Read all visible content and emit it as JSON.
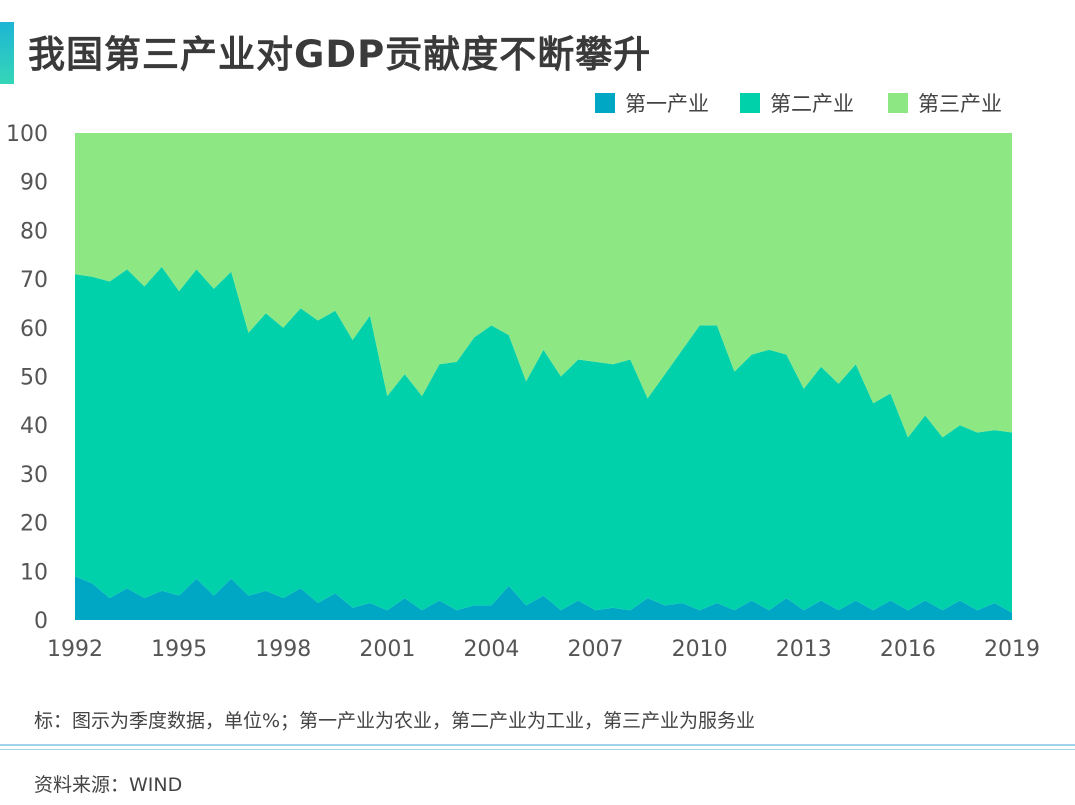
{
  "title": "我国第三产业对GDP贡献度不断攀升",
  "note": "标：图示为季度数据，单位%；第一产业为农业，第二产业为工业，第三产业为服务业",
  "source": "资料来源：WIND",
  "colors": {
    "primary": "#00a7c5",
    "secondary": "#00d1aa",
    "tertiary": "#8de883",
    "title_accent": "#1db5d4"
  },
  "chart_data": {
    "type": "area",
    "stacked": true,
    "title": "我国第三产业对GDP贡献度不断攀升",
    "xlabel": "",
    "ylabel": "",
    "ylim": [
      0,
      100
    ],
    "xlim": [
      1992,
      2019
    ],
    "yticks": [
      0,
      10,
      20,
      30,
      40,
      50,
      60,
      70,
      80,
      90,
      100
    ],
    "xticks": [
      "1992",
      "1995",
      "1998",
      "2001",
      "2004",
      "2007",
      "2010",
      "2013",
      "2016",
      "2019"
    ],
    "legend_position": "top-right",
    "series": [
      {
        "name": "第一产业",
        "color": "#00a7c5",
        "x": [
          1992,
          1992.5,
          1993,
          1993.5,
          1994,
          1994.5,
          1995,
          1995.5,
          1996,
          1996.5,
          1997,
          1997.5,
          1998,
          1998.5,
          1999,
          1999.5,
          2000,
          2000.5,
          2001,
          2001.5,
          2002,
          2002.5,
          2003,
          2003.5,
          2004,
          2004.5,
          2005,
          2005.5,
          2006,
          2006.5,
          2007,
          2007.5,
          2008,
          2008.5,
          2009,
          2009.5,
          2010,
          2010.5,
          2011,
          2011.5,
          2012,
          2012.5,
          2013,
          2013.5,
          2014,
          2014.5,
          2015,
          2015.5,
          2016,
          2016.5,
          2017,
          2017.5,
          2018,
          2018.5,
          2019
        ],
        "values": [
          9,
          7.5,
          4.5,
          6.5,
          4.5,
          6,
          5,
          8.5,
          5,
          8.5,
          5,
          6,
          4.5,
          6.5,
          3.5,
          5.5,
          2.5,
          3.5,
          2,
          4.5,
          2,
          4,
          2,
          3,
          3,
          7,
          3,
          5,
          2,
          4,
          2,
          2.5,
          2,
          4.5,
          3,
          3.5,
          2,
          3.5,
          2,
          4,
          2,
          4.5,
          2,
          4,
          2,
          4,
          2,
          4,
          2,
          4,
          2,
          4,
          2,
          3.5,
          1.5
        ]
      },
      {
        "name": "第二产业",
        "color": "#00d1aa",
        "x": [
          1992,
          1992.5,
          1993,
          1993.5,
          1994,
          1994.5,
          1995,
          1995.5,
          1996,
          1996.5,
          1997,
          1997.5,
          1998,
          1998.5,
          1999,
          1999.5,
          2000,
          2000.5,
          2001,
          2001.5,
          2002,
          2002.5,
          2003,
          2003.5,
          2004,
          2004.5,
          2005,
          2005.5,
          2006,
          2006.5,
          2007,
          2007.5,
          2008,
          2008.5,
          2009,
          2009.5,
          2010,
          2010.5,
          2011,
          2011.5,
          2012,
          2012.5,
          2013,
          2013.5,
          2014,
          2014.5,
          2015,
          2015.5,
          2016,
          2016.5,
          2017,
          2017.5,
          2018,
          2018.5,
          2019
        ],
        "values": [
          62,
          63,
          65,
          65.5,
          64,
          66.5,
          62.5,
          63.5,
          63,
          63,
          54,
          57,
          55.5,
          57.5,
          58,
          58,
          55,
          59,
          44,
          46,
          44,
          48.5,
          51,
          55,
          57.5,
          51.5,
          46,
          50.5,
          48,
          49.5,
          51,
          50,
          51.5,
          41,
          47.5,
          52,
          58.5,
          57,
          49,
          50.5,
          53.5,
          50,
          45.5,
          48,
          46.5,
          48.5,
          42.5,
          42.5,
          35.5,
          38,
          35.5,
          36,
          36.5,
          35.5,
          37
        ]
      },
      {
        "name": "第三产业",
        "color": "#8de883",
        "x": [
          1992,
          1992.5,
          1993,
          1993.5,
          1994,
          1994.5,
          1995,
          1995.5,
          1996,
          1996.5,
          1997,
          1997.5,
          1998,
          1998.5,
          1999,
          1999.5,
          2000,
          2000.5,
          2001,
          2001.5,
          2002,
          2002.5,
          2003,
          2003.5,
          2004,
          2004.5,
          2005,
          2005.5,
          2006,
          2006.5,
          2007,
          2007.5,
          2008,
          2008.5,
          2009,
          2009.5,
          2010,
          2010.5,
          2011,
          2011.5,
          2012,
          2012.5,
          2013,
          2013.5,
          2014,
          2014.5,
          2015,
          2015.5,
          2016,
          2016.5,
          2017,
          2017.5,
          2018,
          2018.5,
          2019
        ],
        "values": [
          29,
          29.5,
          30.5,
          28,
          31.5,
          27.5,
          32.5,
          28,
          32,
          28.5,
          41,
          37,
          40,
          36,
          38.5,
          36.5,
          42.5,
          37.5,
          54,
          49.5,
          54,
          47.5,
          47,
          42,
          39.5,
          41.5,
          51,
          44.5,
          50,
          46.5,
          47,
          47.5,
          46.5,
          54.5,
          49.5,
          44.5,
          39.5,
          39.5,
          49,
          45.5,
          44.5,
          45.5,
          52.5,
          48,
          51.5,
          47.5,
          55.5,
          53.5,
          62.5,
          58,
          62.5,
          60,
          61.5,
          61,
          61.5
        ]
      }
    ]
  }
}
